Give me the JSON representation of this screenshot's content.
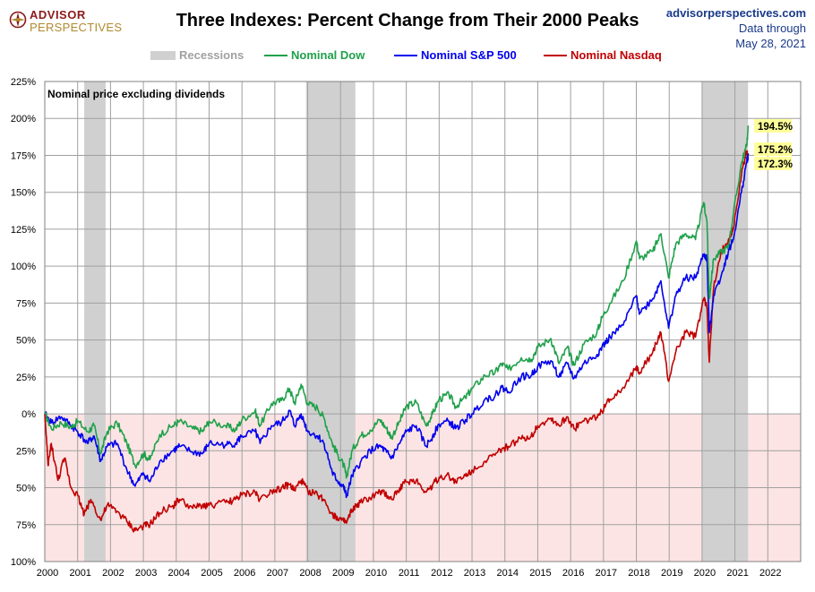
{
  "header": {
    "logo_line1": "ADVISOR",
    "logo_line2": "PERSPECTIVES",
    "title": "Three Indexes: Percent Change from Their 2000 Peaks",
    "source_site": "advisorperspectives.com",
    "data_through_label": "Data through",
    "data_through_date": "May 28, 2021"
  },
  "colors": {
    "dow": "#1fa14a",
    "sp500": "#0000ee",
    "nasdaq": "#c00000",
    "recession": "#d0d0d0",
    "negative_zone": "#fde4e4",
    "end_label_bg": "#ffff99"
  },
  "legend": [
    {
      "key": "recession",
      "label": "Recessions",
      "color": "#a8a8a8",
      "kind": "band"
    },
    {
      "key": "dow",
      "label": "Nominal Dow",
      "color": "#1fa14a",
      "kind": "line"
    },
    {
      "key": "sp500",
      "label": "Nominal S&P 500",
      "color": "#0000ee",
      "kind": "line"
    },
    {
      "key": "nasdaq",
      "label": "Nominal Nasdaq",
      "color": "#c00000",
      "kind": "line"
    }
  ],
  "chart_data": {
    "type": "line",
    "title": "Three Indexes: Percent Change from Their 2000 Peaks",
    "annotation": "Nominal price excluding dividends",
    "xlim": [
      2000,
      2023
    ],
    "ylim": [
      -100,
      225
    ],
    "x_tick_labels": [
      "2000",
      "2001",
      "2002",
      "2003",
      "2004",
      "2005",
      "2006",
      "2007",
      "2008",
      "2009",
      "2010",
      "2011",
      "2012",
      "2013",
      "2014",
      "2015",
      "2016",
      "2017",
      "2018",
      "2019",
      "2020",
      "2021",
      "2022"
    ],
    "y_ticks": [
      {
        "value": 225,
        "label": "225%"
      },
      {
        "value": 200,
        "label": "200%"
      },
      {
        "value": 175,
        "label": "175%"
      },
      {
        "value": 150,
        "label": "150%"
      },
      {
        "value": 125,
        "label": "125%"
      },
      {
        "value": 100,
        "label": "100%"
      },
      {
        "value": 75,
        "label": "75%"
      },
      {
        "value": 50,
        "label": "50%"
      },
      {
        "value": 25,
        "label": "25%"
      },
      {
        "value": 0,
        "label": "0%"
      },
      {
        "value": -25,
        "label": "25%"
      },
      {
        "value": -50,
        "label": "50%"
      },
      {
        "value": -75,
        "label": "75%"
      },
      {
        "value": -100,
        "label": "100%"
      }
    ],
    "grid": true,
    "legend_position": "top",
    "recessions": [
      [
        2001.2,
        2001.85
      ],
      [
        2007.95,
        2009.45
      ],
      [
        2020.0,
        2021.4
      ]
    ],
    "series": [
      {
        "name": "Nominal Dow",
        "key": "dow",
        "end_label": "194.5%",
        "points": [
          [
            2000,
            0
          ],
          [
            2000.2,
            -10
          ],
          [
            2000.5,
            -6
          ],
          [
            2000.8,
            -9
          ],
          [
            2001.0,
            -5
          ],
          [
            2001.3,
            -12
          ],
          [
            2001.5,
            -8
          ],
          [
            2001.7,
            -27
          ],
          [
            2001.9,
            -12
          ],
          [
            2002.2,
            -6
          ],
          [
            2002.5,
            -20
          ],
          [
            2002.75,
            -35
          ],
          [
            2003.0,
            -27
          ],
          [
            2003.2,
            -31
          ],
          [
            2003.5,
            -14
          ],
          [
            2003.9,
            -8
          ],
          [
            2004.1,
            -5
          ],
          [
            2004.5,
            -10
          ],
          [
            2004.8,
            -12
          ],
          [
            2005.0,
            -5
          ],
          [
            2005.5,
            -8
          ],
          [
            2005.8,
            -11
          ],
          [
            2006.0,
            -4
          ],
          [
            2006.4,
            2
          ],
          [
            2006.55,
            -8
          ],
          [
            2006.9,
            7
          ],
          [
            2007.2,
            9
          ],
          [
            2007.45,
            17
          ],
          [
            2007.6,
            7
          ],
          [
            2007.8,
            20
          ],
          [
            2008.0,
            7
          ],
          [
            2008.3,
            4
          ],
          [
            2008.5,
            -3
          ],
          [
            2008.75,
            -20
          ],
          [
            2008.9,
            -27
          ],
          [
            2009.1,
            -35
          ],
          [
            2009.18,
            -43
          ],
          [
            2009.35,
            -25
          ],
          [
            2009.6,
            -15
          ],
          [
            2009.9,
            -11
          ],
          [
            2010.2,
            -4
          ],
          [
            2010.4,
            -10
          ],
          [
            2010.55,
            -16
          ],
          [
            2010.8,
            -5
          ],
          [
            2011.0,
            5
          ],
          [
            2011.3,
            8
          ],
          [
            2011.6,
            -8
          ],
          [
            2011.8,
            0
          ],
          [
            2012.0,
            10
          ],
          [
            2012.3,
            13
          ],
          [
            2012.5,
            5
          ],
          [
            2012.8,
            11
          ],
          [
            2013.0,
            17
          ],
          [
            2013.4,
            26
          ],
          [
            2013.7,
            28
          ],
          [
            2013.9,
            34
          ],
          [
            2014.1,
            30
          ],
          [
            2014.5,
            38
          ],
          [
            2014.8,
            37
          ],
          [
            2015.0,
            45
          ],
          [
            2015.4,
            51
          ],
          [
            2015.65,
            34
          ],
          [
            2015.9,
            45
          ],
          [
            2016.1,
            33
          ],
          [
            2016.4,
            47
          ],
          [
            2016.8,
            55
          ],
          [
            2016.95,
            65
          ],
          [
            2017.2,
            75
          ],
          [
            2017.6,
            90
          ],
          [
            2018.0,
            117
          ],
          [
            2018.1,
            105
          ],
          [
            2018.5,
            110
          ],
          [
            2018.75,
            122
          ],
          [
            2018.98,
            92
          ],
          [
            2019.2,
            115
          ],
          [
            2019.5,
            122
          ],
          [
            2019.8,
            118
          ],
          [
            2020.05,
            143
          ],
          [
            2020.15,
            130
          ],
          [
            2020.22,
            78
          ],
          [
            2020.35,
            105
          ],
          [
            2020.6,
            110
          ],
          [
            2020.8,
            113
          ],
          [
            2020.95,
            135
          ],
          [
            2021.2,
            170
          ],
          [
            2021.35,
            181
          ],
          [
            2021.41,
            194.5
          ]
        ]
      },
      {
        "name": "Nominal S&P 500",
        "key": "sp500",
        "end_label": "175.2%",
        "points": [
          [
            2000,
            0
          ],
          [
            2000.2,
            -6
          ],
          [
            2000.5,
            -2
          ],
          [
            2000.8,
            -8
          ],
          [
            2001.0,
            -12
          ],
          [
            2001.3,
            -20
          ],
          [
            2001.5,
            -15
          ],
          [
            2001.7,
            -32
          ],
          [
            2001.9,
            -22
          ],
          [
            2002.2,
            -20
          ],
          [
            2002.5,
            -38
          ],
          [
            2002.75,
            -49
          ],
          [
            2003.0,
            -40
          ],
          [
            2003.2,
            -46
          ],
          [
            2003.5,
            -32
          ],
          [
            2003.9,
            -25
          ],
          [
            2004.1,
            -22
          ],
          [
            2004.5,
            -26
          ],
          [
            2004.8,
            -27
          ],
          [
            2005.0,
            -20
          ],
          [
            2005.5,
            -21
          ],
          [
            2005.8,
            -20
          ],
          [
            2006.0,
            -15
          ],
          [
            2006.4,
            -12
          ],
          [
            2006.55,
            -20
          ],
          [
            2006.9,
            -8
          ],
          [
            2007.2,
            -6
          ],
          [
            2007.45,
            2
          ],
          [
            2007.6,
            -8
          ],
          [
            2007.8,
            0
          ],
          [
            2008.0,
            -12
          ],
          [
            2008.3,
            -15
          ],
          [
            2008.5,
            -20
          ],
          [
            2008.75,
            -40
          ],
          [
            2008.9,
            -45
          ],
          [
            2009.1,
            -50
          ],
          [
            2009.18,
            -56
          ],
          [
            2009.35,
            -42
          ],
          [
            2009.6,
            -33
          ],
          [
            2009.9,
            -25
          ],
          [
            2010.2,
            -22
          ],
          [
            2010.4,
            -26
          ],
          [
            2010.55,
            -30
          ],
          [
            2010.8,
            -20
          ],
          [
            2011.0,
            -12
          ],
          [
            2011.3,
            -8
          ],
          [
            2011.6,
            -22
          ],
          [
            2011.8,
            -15
          ],
          [
            2012.0,
            -7
          ],
          [
            2012.3,
            -5
          ],
          [
            2012.5,
            -10
          ],
          [
            2012.8,
            -4
          ],
          [
            2013.0,
            0
          ],
          [
            2013.4,
            10
          ],
          [
            2013.7,
            12
          ],
          [
            2013.9,
            18
          ],
          [
            2014.1,
            15
          ],
          [
            2014.5,
            25
          ],
          [
            2014.8,
            26
          ],
          [
            2015.0,
            32
          ],
          [
            2015.4,
            36
          ],
          [
            2015.65,
            25
          ],
          [
            2015.9,
            34
          ],
          [
            2016.1,
            24
          ],
          [
            2016.4,
            34
          ],
          [
            2016.8,
            40
          ],
          [
            2016.95,
            45
          ],
          [
            2017.2,
            52
          ],
          [
            2017.6,
            60
          ],
          [
            2018.0,
            80
          ],
          [
            2018.1,
            68
          ],
          [
            2018.5,
            78
          ],
          [
            2018.75,
            90
          ],
          [
            2018.98,
            58
          ],
          [
            2019.2,
            80
          ],
          [
            2019.5,
            92
          ],
          [
            2019.8,
            92
          ],
          [
            2020.05,
            108
          ],
          [
            2020.15,
            105
          ],
          [
            2020.22,
            55
          ],
          [
            2020.35,
            80
          ],
          [
            2020.6,
            95
          ],
          [
            2020.8,
            110
          ],
          [
            2020.95,
            118
          ],
          [
            2021.2,
            150
          ],
          [
            2021.35,
            170
          ],
          [
            2021.41,
            175.2
          ]
        ]
      },
      {
        "name": "Nominal Nasdaq",
        "key": "nasdaq",
        "end_label": "172.3%",
        "points": [
          [
            2000,
            0
          ],
          [
            2000.1,
            -35
          ],
          [
            2000.2,
            -20
          ],
          [
            2000.4,
            -45
          ],
          [
            2000.6,
            -30
          ],
          [
            2000.8,
            -50
          ],
          [
            2001.0,
            -55
          ],
          [
            2001.2,
            -68
          ],
          [
            2001.4,
            -58
          ],
          [
            2001.7,
            -72
          ],
          [
            2001.9,
            -62
          ],
          [
            2002.2,
            -66
          ],
          [
            2002.5,
            -73
          ],
          [
            2002.75,
            -79
          ],
          [
            2003.0,
            -76
          ],
          [
            2003.2,
            -75
          ],
          [
            2003.5,
            -67
          ],
          [
            2003.9,
            -62
          ],
          [
            2004.1,
            -58
          ],
          [
            2004.5,
            -64
          ],
          [
            2004.8,
            -62
          ],
          [
            2005.0,
            -62
          ],
          [
            2005.5,
            -60
          ],
          [
            2005.8,
            -58
          ],
          [
            2006.0,
            -55
          ],
          [
            2006.4,
            -53
          ],
          [
            2006.55,
            -58
          ],
          [
            2006.9,
            -52
          ],
          [
            2007.2,
            -50
          ],
          [
            2007.45,
            -48
          ],
          [
            2007.6,
            -52
          ],
          [
            2007.8,
            -45
          ],
          [
            2008.0,
            -52
          ],
          [
            2008.3,
            -55
          ],
          [
            2008.5,
            -58
          ],
          [
            2008.75,
            -68
          ],
          [
            2008.9,
            -70
          ],
          [
            2009.1,
            -73
          ],
          [
            2009.18,
            -74
          ],
          [
            2009.35,
            -65
          ],
          [
            2009.6,
            -60
          ],
          [
            2009.9,
            -57
          ],
          [
            2010.2,
            -53
          ],
          [
            2010.4,
            -55
          ],
          [
            2010.55,
            -58
          ],
          [
            2010.8,
            -50
          ],
          [
            2011.0,
            -46
          ],
          [
            2011.3,
            -45
          ],
          [
            2011.6,
            -53
          ],
          [
            2011.8,
            -48
          ],
          [
            2012.0,
            -43
          ],
          [
            2012.3,
            -42
          ],
          [
            2012.5,
            -46
          ],
          [
            2012.8,
            -42
          ],
          [
            2013.0,
            -38
          ],
          [
            2013.4,
            -32
          ],
          [
            2013.7,
            -28
          ],
          [
            2013.9,
            -24
          ],
          [
            2014.1,
            -22
          ],
          [
            2014.5,
            -17
          ],
          [
            2014.8,
            -15
          ],
          [
            2015.0,
            -8
          ],
          [
            2015.4,
            -3
          ],
          [
            2015.65,
            -8
          ],
          [
            2015.9,
            -2
          ],
          [
            2016.1,
            -10
          ],
          [
            2016.4,
            -5
          ],
          [
            2016.8,
            -2
          ],
          [
            2016.95,
            2
          ],
          [
            2017.2,
            10
          ],
          [
            2017.6,
            18
          ],
          [
            2018.0,
            32
          ],
          [
            2018.1,
            28
          ],
          [
            2018.5,
            42
          ],
          [
            2018.75,
            55
          ],
          [
            2018.98,
            22
          ],
          [
            2019.2,
            42
          ],
          [
            2019.5,
            55
          ],
          [
            2019.8,
            52
          ],
          [
            2020.05,
            78
          ],
          [
            2020.15,
            72
          ],
          [
            2020.22,
            35
          ],
          [
            2020.35,
            85
          ],
          [
            2020.6,
            110
          ],
          [
            2020.8,
            118
          ],
          [
            2020.95,
            125
          ],
          [
            2021.2,
            162
          ],
          [
            2021.35,
            178
          ],
          [
            2021.41,
            172.3
          ]
        ]
      }
    ]
  }
}
